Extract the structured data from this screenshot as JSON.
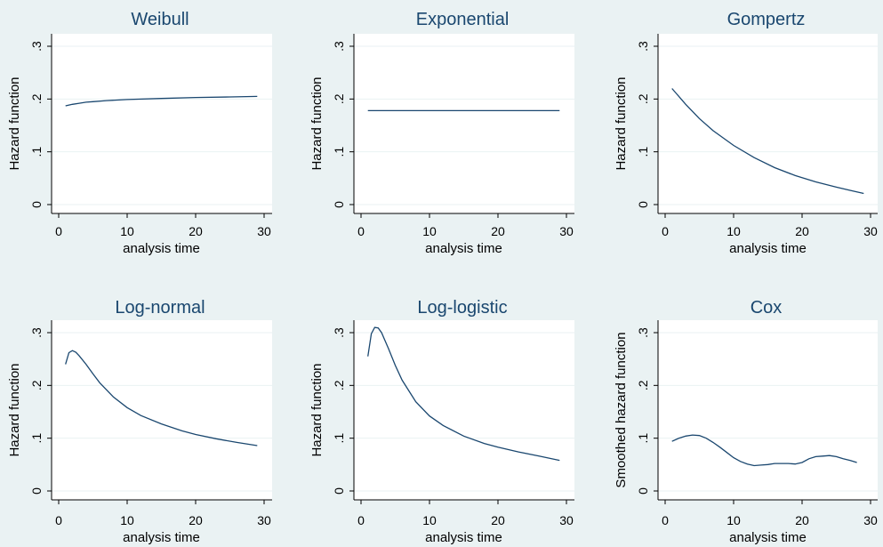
{
  "colors": {
    "background": "#eaf2f3",
    "plot_background": "#ffffff",
    "line": "#1a476f",
    "title": "#1a476f"
  },
  "chart_data": [
    {
      "type": "line",
      "title": "Weibull",
      "xlabel": "analysis time",
      "ylabel": "Hazard function",
      "xticks": [
        0,
        10,
        20,
        30
      ],
      "xtick_labels": [
        "0",
        "10",
        "20",
        "30"
      ],
      "yticks": [
        0,
        0.1,
        0.2,
        0.3
      ],
      "ytick_labels": [
        "0",
        ".1",
        ".2",
        ".3"
      ],
      "xlim": [
        0,
        30
      ],
      "ylim": [
        0,
        0.3
      ],
      "grid": true,
      "series": [
        {
          "x": [
            1,
            2,
            3,
            4,
            5,
            7,
            10,
            15,
            20,
            25,
            29
          ],
          "y": [
            0.187,
            0.19,
            0.192,
            0.194,
            0.195,
            0.197,
            0.199,
            0.201,
            0.203,
            0.204,
            0.205
          ]
        }
      ]
    },
    {
      "type": "line",
      "title": "Exponential",
      "xlabel": "analysis time",
      "ylabel": "Hazard function",
      "xticks": [
        0,
        10,
        20,
        30
      ],
      "xtick_labels": [
        "0",
        "10",
        "20",
        "30"
      ],
      "yticks": [
        0,
        0.1,
        0.2,
        0.3
      ],
      "ytick_labels": [
        "0",
        ".1",
        ".2",
        ".3"
      ],
      "xlim": [
        0,
        30
      ],
      "ylim": [
        0,
        0.3
      ],
      "grid": true,
      "series": [
        {
          "x": [
            1,
            29
          ],
          "y": [
            0.178,
            0.178
          ]
        }
      ]
    },
    {
      "type": "line",
      "title": "Gompertz",
      "xlabel": "analysis time",
      "ylabel": "Hazard function",
      "xticks": [
        0,
        10,
        20,
        30
      ],
      "xtick_labels": [
        "0",
        "10",
        "20",
        "30"
      ],
      "yticks": [
        0,
        0.1,
        0.2,
        0.3
      ],
      "ytick_labels": [
        "0",
        ".1",
        ".2",
        ".3"
      ],
      "xlim": [
        0,
        30
      ],
      "ylim": [
        0,
        0.3
      ],
      "grid": true,
      "series": [
        {
          "x": [
            1,
            3,
            5,
            7,
            10,
            13,
            16,
            19,
            22,
            25,
            27,
            29
          ],
          "y": [
            0.22,
            0.19,
            0.163,
            0.14,
            0.112,
            0.089,
            0.07,
            0.055,
            0.043,
            0.033,
            0.027,
            0.021
          ]
        }
      ]
    },
    {
      "type": "line",
      "title": "Log-normal",
      "xlabel": "analysis time",
      "ylabel": "Hazard function",
      "xticks": [
        0,
        10,
        20,
        30
      ],
      "xtick_labels": [
        "0",
        "10",
        "20",
        "30"
      ],
      "yticks": [
        0,
        0.1,
        0.2,
        0.3
      ],
      "ytick_labels": [
        "0",
        ".1",
        ".2",
        ".3"
      ],
      "xlim": [
        0,
        30
      ],
      "ylim": [
        0,
        0.3
      ],
      "grid": true,
      "series": [
        {
          "x": [
            1,
            1.5,
            2,
            2.5,
            3,
            4,
            5,
            6,
            8,
            10,
            12,
            15,
            18,
            20,
            23,
            26,
            29
          ],
          "y": [
            0.24,
            0.262,
            0.266,
            0.263,
            0.256,
            0.24,
            0.222,
            0.205,
            0.178,
            0.158,
            0.143,
            0.127,
            0.114,
            0.107,
            0.099,
            0.092,
            0.086
          ]
        }
      ]
    },
    {
      "type": "line",
      "title": "Log-logistic",
      "xlabel": "analysis time",
      "ylabel": "Hazard function",
      "xticks": [
        0,
        10,
        20,
        30
      ],
      "xtick_labels": [
        "0",
        "10",
        "20",
        "30"
      ],
      "yticks": [
        0,
        0.1,
        0.2,
        0.3
      ],
      "ytick_labels": [
        "0",
        ".1",
        ".2",
        ".3"
      ],
      "xlim": [
        0,
        30
      ],
      "ylim": [
        0,
        0.3
      ],
      "grid": true,
      "series": [
        {
          "x": [
            1,
            1.5,
            2,
            2.5,
            3,
            4,
            5,
            6,
            8,
            10,
            12,
            15,
            18,
            20,
            23,
            26,
            29
          ],
          "y": [
            0.255,
            0.298,
            0.31,
            0.309,
            0.3,
            0.27,
            0.238,
            0.21,
            0.169,
            0.142,
            0.124,
            0.104,
            0.09,
            0.083,
            0.074,
            0.066,
            0.058
          ]
        }
      ]
    },
    {
      "type": "line",
      "title": "Cox",
      "xlabel": "analysis time",
      "ylabel": "Smoothed hazard function",
      "xticks": [
        0,
        10,
        20,
        30
      ],
      "xtick_labels": [
        "0",
        "10",
        "20",
        "30"
      ],
      "yticks": [
        0,
        0.1,
        0.2,
        0.3
      ],
      "ytick_labels": [
        "0",
        ".1",
        ".2",
        ".3"
      ],
      "xlim": [
        0,
        30
      ],
      "ylim": [
        0,
        0.3
      ],
      "grid": true,
      "series": [
        {
          "x": [
            1,
            2,
            3,
            4,
            5,
            6,
            7,
            8,
            9,
            10,
            11,
            12,
            13,
            14,
            15,
            16,
            17,
            18,
            19,
            20,
            21,
            22,
            23,
            24,
            25,
            26,
            27,
            28
          ],
          "y": [
            0.094,
            0.1,
            0.104,
            0.106,
            0.105,
            0.1,
            0.092,
            0.083,
            0.073,
            0.063,
            0.056,
            0.051,
            0.048,
            0.049,
            0.05,
            0.052,
            0.052,
            0.052,
            0.051,
            0.054,
            0.061,
            0.065,
            0.066,
            0.067,
            0.065,
            0.061,
            0.058,
            0.054
          ]
        }
      ]
    }
  ]
}
